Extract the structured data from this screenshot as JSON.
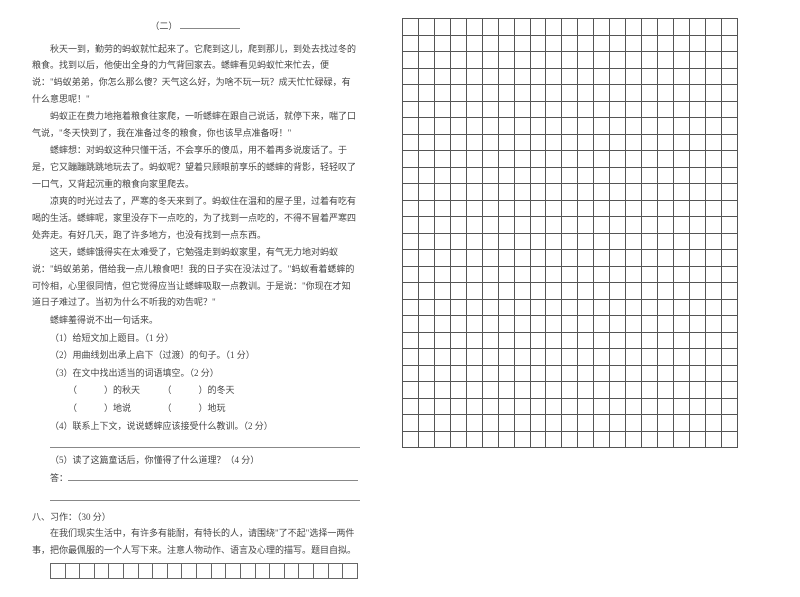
{
  "title_label": "（二）",
  "title_blank_width": 60,
  "paragraphs": [
    "秋天一到，勤劳的蚂蚁就忙起来了。它爬到这儿，爬到那儿，到处去找过冬的粮食。找到以后，他使出全身的力气背回家去。蟋蟀看见蚂蚁忙来忙去，便说：\"蚂蚁弟弟，你怎么那么傻？天气这么好，为啥不玩一玩？成天忙忙碌碌，有什么意思呢！\"",
    "蚂蚁正在费力地拖着粮食往家爬，一听蟋蟀在跟自己说话，就停下来，喘了口气说，\"冬天快到了，我在准备过冬的粮食，你也该早点准备呀！\"",
    "蟋蟀想：对蚂蚁这种只懂干活，不会享乐的傻瓜，用不着再多说废话了。于是，它又蹦蹦跳跳地玩去了。蚂蚁呢？望着只顾眼前享乐的蟋蟀的背影，轻轻叹了一口气，又背起沉重的粮食向家里爬去。",
    "凉爽的时光过去了，严寒的冬天来到了。蚂蚁住在温和的屋子里，过着有吃有喝的生活。蟋蟀呢，家里没存下一点吃的，为了找到一点吃的，不得不冒着严寒四处奔走。有好几天，跑了许多地方，也没有找到一点东西。",
    "这天，蟋蟀饿得实在太难受了，它勉强走到蚂蚁家里，有气无力地对蚂蚁说：\"蚂蚁弟弟，借给我一点儿粮食吧！我的日子实在没法过了。\"蚂蚁看着蟋蟀的可怜相，心里很同情，但它觉得应当让蟋蟀吸取一点教训。于是说：\"你现在才知道日子难过了。当初为什么不听我的劝告呢？\"",
    "蟋蟀羞得说不出一句话来。"
  ],
  "questions": {
    "q1": "（1）给短文加上题目。（1 分）",
    "q2": "（2）用曲线划出承上启下（过渡）的句子。（1 分）",
    "q3": "（3）在文中找出适当的词语填空。（2 分）",
    "q3a": {
      "left": "）的秋天",
      "right": "）的冬天"
    },
    "q3b": {
      "left": "）地说",
      "right": "）地玩"
    },
    "q4": "（4）联系上下文，说说蟋蟀应该接受什么教训。（2 分）",
    "q5": "（5）读了这篇童话后，你懂得了什么道理？（4 分）",
    "ans_label": "答："
  },
  "section8": {
    "header": "八、习作：（30 分）",
    "body": "在我们现实生活中，有许多有能耐，有特长的人，请围绕\"了不起\"选择一两件事，把你最佩服的一个人写下来。注意人物动作、语言及心理的描写。题目自拟。"
  },
  "grid": {
    "rows": 26,
    "cols": 21,
    "border_color": "#555555"
  },
  "bottom_row_cols": 21,
  "style": {
    "font_family": "SimSun",
    "font_size_pt": 9,
    "line_height": 1.85,
    "text_color": "#444444",
    "line_color": "#888888",
    "background": "#ffffff"
  }
}
